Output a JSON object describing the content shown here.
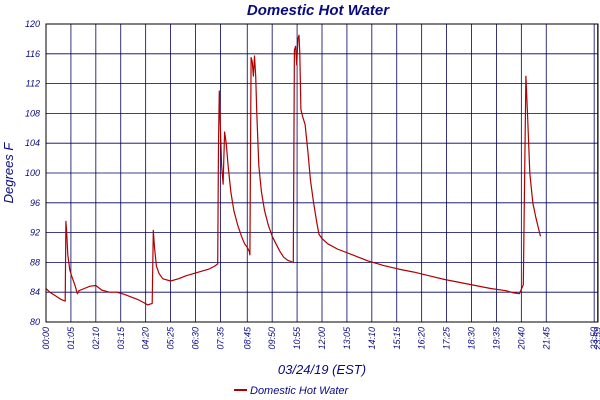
{
  "chart_data": {
    "type": "line",
    "title": "Domestic Hot Water",
    "xlabel": "03/24/19 (EST)",
    "ylabel": "Degrees F",
    "ylim": [
      80,
      120
    ],
    "yticks": [
      80,
      84,
      88,
      92,
      96,
      100,
      104,
      108,
      112,
      116,
      120
    ],
    "xlim": [
      0,
      1440
    ],
    "xticks": [
      {
        "label": "00:00",
        "min": 0
      },
      {
        "label": "01:05",
        "min": 65
      },
      {
        "label": "02:10",
        "min": 130
      },
      {
        "label": "03:15",
        "min": 195
      },
      {
        "label": "04:20",
        "min": 260
      },
      {
        "label": "05:25",
        "min": 325
      },
      {
        "label": "06:30",
        "min": 390
      },
      {
        "label": "07:35",
        "min": 455
      },
      {
        "label": "08:45",
        "min": 525
      },
      {
        "label": "09:50",
        "min": 590
      },
      {
        "label": "10:55",
        "min": 655
      },
      {
        "label": "12:00",
        "min": 720
      },
      {
        "label": "13:05",
        "min": 785
      },
      {
        "label": "14:10",
        "min": 850
      },
      {
        "label": "15:15",
        "min": 915
      },
      {
        "label": "16:20",
        "min": 980
      },
      {
        "label": "17:25",
        "min": 1045
      },
      {
        "label": "18:30",
        "min": 1110
      },
      {
        "label": "19:35",
        "min": 1175
      },
      {
        "label": "20:40",
        "min": 1240
      },
      {
        "label": "21:45",
        "min": 1305
      },
      {
        "label": "23:50",
        "min": 1430
      },
      {
        "label": "23:59",
        "min": 1439
      }
    ],
    "grid": true,
    "legend_position": "bottom",
    "series": [
      {
        "name": "Domestic Hot Water",
        "color": "#b00000",
        "points": [
          [
            0,
            84.5
          ],
          [
            10,
            84
          ],
          [
            25,
            83.5
          ],
          [
            40,
            83
          ],
          [
            50,
            82.8
          ],
          [
            52,
            93.5
          ],
          [
            54,
            92
          ],
          [
            57,
            89
          ],
          [
            62,
            87
          ],
          [
            68,
            86
          ],
          [
            75,
            85
          ],
          [
            82,
            83.8
          ],
          [
            86,
            84.2
          ],
          [
            100,
            84.5
          ],
          [
            115,
            84.8
          ],
          [
            130,
            84.9
          ],
          [
            145,
            84.3
          ],
          [
            165,
            84
          ],
          [
            185,
            84
          ],
          [
            205,
            83.7
          ],
          [
            220,
            83.4
          ],
          [
            240,
            83
          ],
          [
            255,
            82.6
          ],
          [
            265,
            82.3
          ],
          [
            277,
            82.5
          ],
          [
            280,
            92.3
          ],
          [
            283,
            90
          ],
          [
            288,
            87.5
          ],
          [
            295,
            86.5
          ],
          [
            305,
            85.8
          ],
          [
            325,
            85.5
          ],
          [
            345,
            85.8
          ],
          [
            365,
            86.2
          ],
          [
            385,
            86.5
          ],
          [
            405,
            86.8
          ],
          [
            425,
            87.1
          ],
          [
            440,
            87.5
          ],
          [
            448,
            87.8
          ],
          [
            450,
            104
          ],
          [
            452,
            111
          ],
          [
            455,
            106
          ],
          [
            458,
            101
          ],
          [
            462,
            98.5
          ],
          [
            466,
            105.5
          ],
          [
            470,
            104
          ],
          [
            475,
            101
          ],
          [
            482,
            97.5
          ],
          [
            490,
            95
          ],
          [
            500,
            93
          ],
          [
            510,
            91.5
          ],
          [
            518,
            90.5
          ],
          [
            525,
            90
          ],
          [
            530,
            89.5
          ],
          [
            532,
            89
          ],
          [
            535,
            115.5
          ],
          [
            538,
            115
          ],
          [
            541,
            113
          ],
          [
            544,
            115.7
          ],
          [
            547,
            113
          ],
          [
            550,
            108
          ],
          [
            555,
            101
          ],
          [
            562,
            97.5
          ],
          [
            570,
            95
          ],
          [
            580,
            93
          ],
          [
            590,
            91.5
          ],
          [
            600,
            90.5
          ],
          [
            610,
            89.5
          ],
          [
            620,
            88.7
          ],
          [
            630,
            88.3
          ],
          [
            640,
            88.1
          ],
          [
            645,
            88
          ],
          [
            648,
            116.5
          ],
          [
            651,
            117
          ],
          [
            654,
            114.5
          ],
          [
            657,
            118
          ],
          [
            660,
            118.5
          ],
          [
            662,
            116
          ],
          [
            665,
            108.5
          ],
          [
            670,
            107.5
          ],
          [
            676,
            106.5
          ],
          [
            683,
            103
          ],
          [
            690,
            99
          ],
          [
            698,
            96
          ],
          [
            706,
            93.5
          ],
          [
            712,
            91.8
          ],
          [
            720,
            91.2
          ],
          [
            735,
            90.5
          ],
          [
            760,
            89.8
          ],
          [
            800,
            89
          ],
          [
            840,
            88.2
          ],
          [
            880,
            87.6
          ],
          [
            920,
            87.1
          ],
          [
            960,
            86.7
          ],
          [
            1000,
            86.2
          ],
          [
            1040,
            85.7
          ],
          [
            1080,
            85.3
          ],
          [
            1120,
            84.9
          ],
          [
            1160,
            84.5
          ],
          [
            1200,
            84.2
          ],
          [
            1220,
            83.9
          ],
          [
            1235,
            83.8
          ],
          [
            1245,
            85
          ],
          [
            1248,
            97
          ],
          [
            1252,
            113
          ],
          [
            1256,
            108
          ],
          [
            1262,
            100
          ],
          [
            1270,
            96
          ],
          [
            1278,
            94
          ],
          [
            1285,
            92.5
          ],
          [
            1290,
            91.5
          ]
        ]
      }
    ]
  }
}
